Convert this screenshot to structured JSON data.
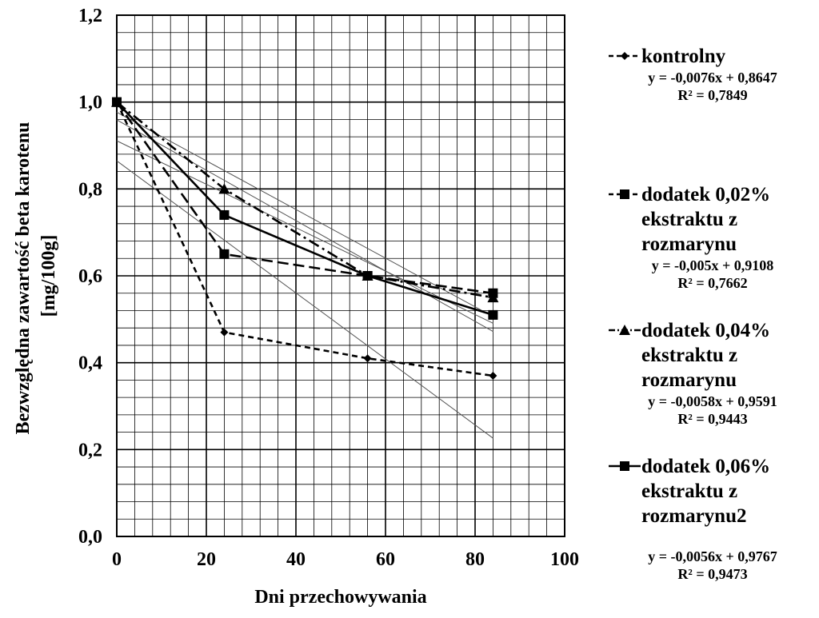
{
  "chart_data": {
    "type": "line",
    "xlabel": "Dni przechowywania",
    "ylabel_lines": [
      "Bezwzględna zawartość beta karotenu",
      "[mg/100g]"
    ],
    "xlim": [
      0,
      100
    ],
    "ylim": [
      0,
      1.2
    ],
    "x_ticks": [
      "0",
      "20",
      "40",
      "60",
      "80",
      "100"
    ],
    "y_ticks": [
      "0,0",
      "0,2",
      "0,4",
      "0,6",
      "0,8",
      "1,0",
      "1,2"
    ],
    "grid": true,
    "legend_position": "right",
    "x": [
      0,
      24,
      56,
      84
    ],
    "series": [
      {
        "name": "kontrolny",
        "values": [
          1.0,
          0.47,
          0.41,
          0.37
        ],
        "marker": "diamond",
        "dash": "dashed",
        "trendline": {
          "equation": "y = -0,0076x + 0,8647",
          "r2": "R² = 0,7849",
          "slope": -0.0076,
          "intercept": 0.8647
        }
      },
      {
        "name": "dodatek 0,02%\nekstraktu z\nrozmarynu",
        "values": [
          1.0,
          0.65,
          0.6,
          0.56
        ],
        "marker": "square",
        "dash": "long-dash",
        "trendline": {
          "equation": "y = -0,005x + 0,9108",
          "r2": "R² = 0,7662",
          "slope": -0.005,
          "intercept": 0.9108
        }
      },
      {
        "name": "dodatek 0,04%\nekstraktu z\nrozmarynu",
        "values": [
          1.0,
          0.8,
          0.6,
          0.55
        ],
        "marker": "triangle",
        "dash": "dash-dot",
        "trendline": {
          "equation": "y = -0,0058x + 0,9591",
          "r2": "R² = 0,9443",
          "slope": -0.0058,
          "intercept": 0.9591
        }
      },
      {
        "name": "dodatek 0,06%\nekstraktu z\nrozmarynu2",
        "values": [
          1.0,
          0.74,
          0.6,
          0.51
        ],
        "marker": "square",
        "dash": "solid",
        "trendline": {
          "equation": "y = -0,0056x + 0,9767",
          "r2": "R² = 0,9473",
          "slope": -0.0056,
          "intercept": 0.9767
        }
      }
    ]
  }
}
